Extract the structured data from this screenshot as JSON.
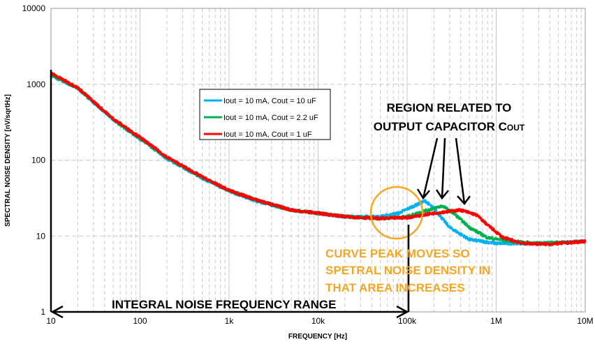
{
  "chart_data": {
    "type": "line",
    "xscale": "log",
    "yscale": "log",
    "xlabel": "FREQUENCY [Hz]",
    "ylabel": "SPECTRAL NOISE DENSITY  [nV/sqrtHz]",
    "xlim": [
      10,
      10000000
    ],
    "ylim": [
      1,
      10000
    ],
    "grid": true,
    "legend_position": "upper-middle",
    "x_ticks": [
      "10",
      "100",
      "1k",
      "10k",
      "100k",
      "1M",
      "10M"
    ],
    "y_ticks": [
      "1",
      "10",
      "100",
      "1000",
      "10000"
    ],
    "series": [
      {
        "name": "Iout = 10 mA, Cout = 10 uF",
        "color": "#00b0f0",
        "points": [
          [
            10,
            1300
          ],
          [
            20,
            880
          ],
          [
            50,
            340
          ],
          [
            100,
            190
          ],
          [
            200,
            105
          ],
          [
            500,
            58
          ],
          [
            1000,
            39
          ],
          [
            2000,
            29
          ],
          [
            5000,
            22
          ],
          [
            10000,
            20
          ],
          [
            20000,
            18
          ],
          [
            50000,
            18
          ],
          [
            80000,
            20
          ],
          [
            120000,
            25
          ],
          [
            160000,
            29
          ],
          [
            200000,
            23
          ],
          [
            300000,
            13
          ],
          [
            500000,
            9
          ],
          [
            1000000,
            8
          ],
          [
            3000000,
            8
          ],
          [
            10000000,
            8.5
          ]
        ]
      },
      {
        "name": "Iout = 10 mA, Cout = 2.2 uF",
        "color": "#00b050",
        "points": [
          [
            10,
            1350
          ],
          [
            20,
            890
          ],
          [
            50,
            345
          ],
          [
            100,
            195
          ],
          [
            200,
            108
          ],
          [
            500,
            59
          ],
          [
            1000,
            40
          ],
          [
            2000,
            30
          ],
          [
            5000,
            22
          ],
          [
            10000,
            20
          ],
          [
            20000,
            18
          ],
          [
            50000,
            17
          ],
          [
            100000,
            18
          ],
          [
            150000,
            21
          ],
          [
            250000,
            25
          ],
          [
            350000,
            19
          ],
          [
            500000,
            13
          ],
          [
            800000,
            9.5
          ],
          [
            1500000,
            8.5
          ],
          [
            3000000,
            8
          ],
          [
            10000000,
            8.5
          ]
        ]
      },
      {
        "name": "Iout = 10 mA, Cout = 1 uF",
        "color": "#ff0000",
        "points": [
          [
            10,
            1400
          ],
          [
            20,
            900
          ],
          [
            50,
            350
          ],
          [
            100,
            200
          ],
          [
            200,
            110
          ],
          [
            500,
            60
          ],
          [
            1000,
            40
          ],
          [
            2000,
            30
          ],
          [
            5000,
            22
          ],
          [
            10000,
            20
          ],
          [
            20000,
            18
          ],
          [
            50000,
            17
          ],
          [
            100000,
            17.5
          ],
          [
            200000,
            20
          ],
          [
            400000,
            22
          ],
          [
            600000,
            19
          ],
          [
            800000,
            14
          ],
          [
            1200000,
            9.5
          ],
          [
            2000000,
            8
          ],
          [
            4000000,
            7.8
          ],
          [
            10000000,
            8.5
          ]
        ]
      }
    ],
    "annotations": {
      "region": [
        "REGION RELATED TO",
        "OUTPUT CAPACITOR C",
        "OUT"
      ],
      "peak": [
        "CURVE PEAK MOVES SO",
        "SPETRAL NOISE DENSITY IN",
        "THAT AREA INCREASES"
      ],
      "range": "INTEGRAL NOISE FREQUENCY RANGE",
      "range_from_hz": 10,
      "range_to_hz": 100000
    }
  }
}
